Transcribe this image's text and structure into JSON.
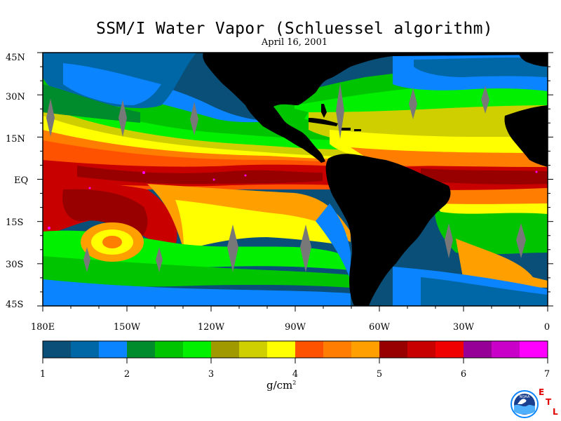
{
  "title": "SSM/I Water Vapor (Schluessel algorithm)",
  "subtitle": "April 16, 2001",
  "lat_labels": [
    "45N",
    "30N",
    "15N",
    "EQ",
    "15S",
    "30S",
    "45S"
  ],
  "lon_labels": [
    "180E",
    "150W",
    "120W",
    "90W",
    "60W",
    "30W",
    "0"
  ],
  "colorbar": {
    "ticks": [
      "1",
      "2",
      "3",
      "4",
      "5",
      "6",
      "7"
    ],
    "units": "g/cm",
    "units_sup": "2",
    "colors": [
      "#0a4f78",
      "#0067a6",
      "#0a84ff",
      "#008c2c",
      "#00c400",
      "#00f000",
      "#a09a00",
      "#cfcf00",
      "#ffff00",
      "#ff5200",
      "#ff7d00",
      "#ffa000",
      "#980000",
      "#c80000",
      "#f00000",
      "#960096",
      "#c800c8",
      "#ff00ff"
    ]
  },
  "palette": {
    "land": "#000000",
    "swath_gap": "#787878",
    "ocean_low": "#0a4f78",
    "ocean_mid": "#0067a6",
    "ocean_blue": "#0a84ff",
    "green_dark": "#008c2c",
    "green": "#00c400",
    "green_light": "#00f000",
    "olive": "#a09a00",
    "yellow": "#ffff00",
    "orange": "#ff7d00",
    "orange_dark": "#ff5200",
    "red_dark": "#980000",
    "red": "#d00000",
    "magenta": "#ff00ff"
  },
  "logo": {
    "noaa_text": "NOAA",
    "etl_letters": [
      "E",
      "T",
      "L"
    ]
  }
}
